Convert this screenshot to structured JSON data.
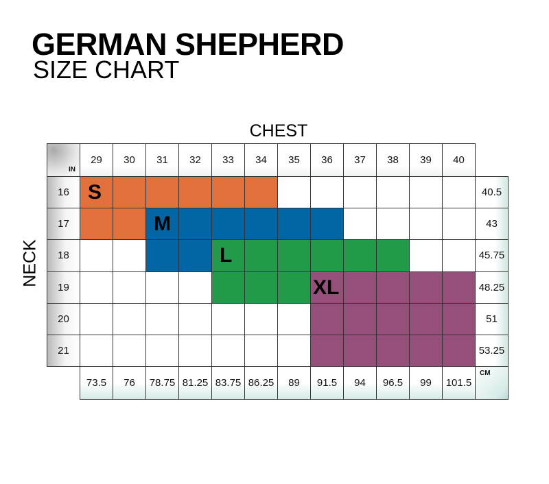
{
  "chart_data": {
    "type": "table",
    "title": "GERMAN SHEPHERD",
    "subtitle": "SIZE CHART",
    "xlabel": "CHEST",
    "ylabel": "NECK",
    "unit_in": "IN",
    "unit_cm": "CM",
    "chest_in": [
      "29",
      "30",
      "31",
      "32",
      "33",
      "34",
      "35",
      "36",
      "37",
      "38",
      "39",
      "40"
    ],
    "chest_cm": [
      "73.5",
      "76",
      "78.75",
      "81.25",
      "83.75",
      "86.25",
      "89",
      "91.5",
      "94",
      "96.5",
      "99",
      "101.5"
    ],
    "neck_in": [
      "16",
      "17",
      "18",
      "19",
      "20",
      "21"
    ],
    "neck_cm": [
      "40.5",
      "43",
      "45.75",
      "48.25",
      "51",
      "53.25"
    ],
    "sizes": [
      {
        "name": "S",
        "color": "#e2703c",
        "cells": {
          "16": [
            "29",
            "34"
          ],
          "17": [
            "29",
            "30"
          ]
        }
      },
      {
        "name": "M",
        "color": "#0366a4",
        "cells": {
          "17": [
            "31",
            "36"
          ],
          "18": [
            "31",
            "32"
          ]
        }
      },
      {
        "name": "L",
        "color": "#239a4a",
        "cells": {
          "18": [
            "33",
            "38"
          ],
          "19": [
            "33",
            "35"
          ]
        }
      },
      {
        "name": "XL",
        "color": "#954f7b",
        "cells": {
          "19": [
            "36",
            "40"
          ],
          "20": [
            "36",
            "40"
          ],
          "21": [
            "36",
            "40"
          ]
        }
      }
    ]
  }
}
